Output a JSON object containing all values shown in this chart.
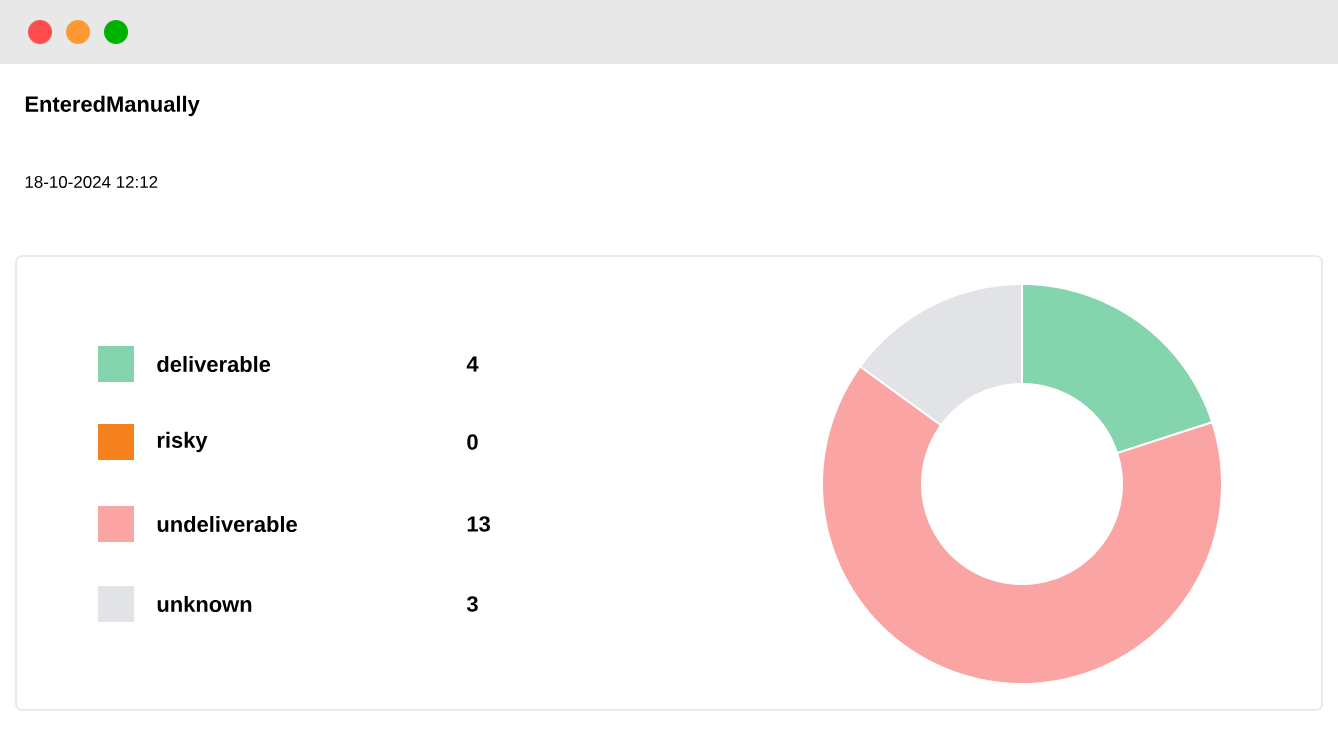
{
  "chart_data": {
    "type": "donut",
    "title": "EnteredManually",
    "subtitle": "18-10-2024 12:12",
    "categories": [
      "deliverable",
      "risky",
      "undeliverable",
      "unknown"
    ],
    "values": [
      4,
      0,
      13,
      3
    ],
    "colors": [
      "#84d5ad",
      "#f5821f",
      "#fba4a4",
      "#e1e3e6"
    ],
    "value_labels": [
      "4",
      "0",
      "13",
      "3"
    ],
    "legend": "left"
  }
}
